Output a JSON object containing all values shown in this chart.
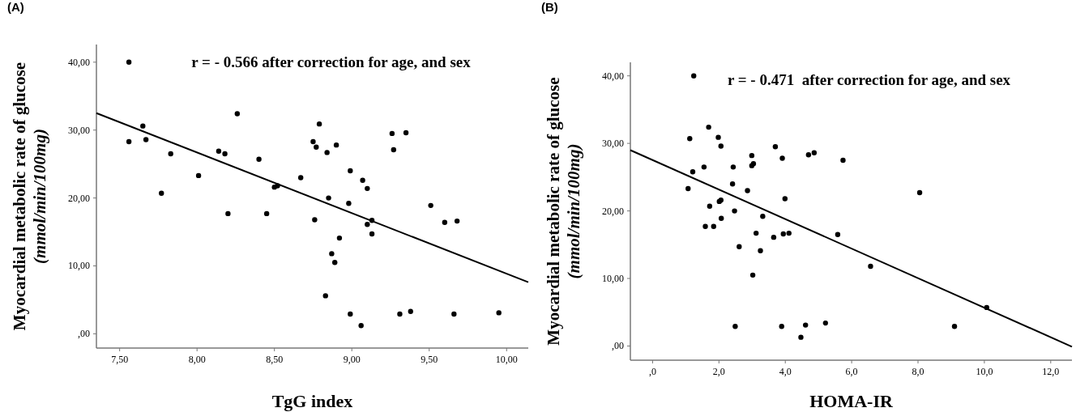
{
  "chart_data": [
    {
      "type": "scatter",
      "title": "(A)",
      "xlabel": "TgG index",
      "ylabel": "Myocardial metabolic rate of glucose\n(mmol/min/100mg)",
      "annotations": [
        "r = - 0.566 after correction for age, and sex"
      ],
      "grid": false,
      "xlim": [
        7.35,
        10.14
      ],
      "ylim": [
        -2.1,
        42.6
      ],
      "xticks": [
        {
          "value": 7.5,
          "label": "7,50"
        },
        {
          "value": 8,
          "label": "8,00"
        },
        {
          "value": 8.5,
          "label": "8,50"
        },
        {
          "value": 9,
          "label": "9,00"
        },
        {
          "value": 9.5,
          "label": "9,50"
        },
        {
          "value": 10,
          "label": "10,00"
        }
      ],
      "yticks": [
        {
          "value": 0,
          "label": ",00"
        },
        {
          "value": 10,
          "label": "10,00"
        },
        {
          "value": 20,
          "label": "20,00"
        },
        {
          "value": 30,
          "label": "30,00"
        },
        {
          "value": 40,
          "label": "40,00"
        }
      ],
      "series": [
        {
          "marker": "circle",
          "color": "#000000",
          "x": [
            7.56,
            7.56,
            7.65,
            7.67,
            7.77,
            7.83,
            8.01,
            8.14,
            8.18,
            8.2,
            8.26,
            8.4,
            8.45,
            8.5,
            8.52,
            8.67,
            8.75,
            8.77,
            8.79,
            8.84,
            8.9,
            8.76,
            8.85,
            8.99,
            8.98,
            9.07,
            9.1,
            9.13,
            9.1,
            9.13,
            8.92,
            8.87,
            8.89,
            8.83,
            8.99,
            9.06,
            9.26,
            9.35,
            9.27,
            9.51,
            9.6,
            9.68,
            9.31,
            9.38,
            9.66,
            9.95
          ],
          "values": [
            40,
            28.3,
            30.6,
            28.6,
            20.7,
            26.5,
            23.3,
            26.9,
            26.5,
            17.7,
            32.4,
            25.7,
            17.7,
            21.6,
            21.8,
            23,
            28.3,
            27.5,
            30.9,
            26.7,
            27.8,
            16.8,
            20,
            24,
            19.2,
            22.6,
            21.4,
            16.7,
            16.1,
            14.7,
            14.1,
            11.8,
            10.5,
            5.6,
            2.9,
            1.2,
            29.5,
            29.6,
            27.1,
            18.9,
            16.4,
            16.6,
            2.9,
            3.3,
            2.9,
            3.1
          ]
        },
        {
          "type": "line",
          "color": "#000000",
          "x": [
            7.35,
            10.14
          ],
          "values": [
            32.5,
            7.6
          ]
        }
      ]
    },
    {
      "type": "scatter",
      "title": "(B)",
      "xlabel": "HOMA-IR",
      "ylabel": "Myocardial metabolic rate of glucose\n(mmol/min/100mg)",
      "annotations": [
        "r = - 0.471  after correction for age, and sex"
      ],
      "grid": false,
      "xlim": [
        -0.67,
        12.64
      ],
      "ylim": [
        -2.1,
        42
      ],
      "xticks": [
        {
          "value": 0,
          "label": ",0"
        },
        {
          "value": 2,
          "label": "2,0"
        },
        {
          "value": 4,
          "label": "4,0"
        },
        {
          "value": 6,
          "label": "6,0"
        },
        {
          "value": 8,
          "label": "8,0"
        },
        {
          "value": 10,
          "label": "10,0"
        },
        {
          "value": 12,
          "label": "12,0"
        }
      ],
      "yticks": [
        {
          "value": 0,
          "label": ",00"
        },
        {
          "value": 10,
          "label": "10,00"
        },
        {
          "value": 20,
          "label": "20,00"
        },
        {
          "value": 30,
          "label": "30,00"
        },
        {
          "value": 40,
          "label": "40,00"
        }
      ],
      "series": [
        {
          "marker": "circle",
          "color": "#000000",
          "x": [
            1.24,
            1.12,
            1.69,
            1.98,
            2.06,
            1.21,
            1.07,
            1.55,
            1.72,
            1.59,
            1.84,
            2.01,
            2.06,
            2.07,
            2.43,
            2.41,
            2.47,
            2.61,
            2.86,
            2.99,
            2.99,
            3.04,
            3.02,
            3.12,
            3.25,
            3.32,
            3.65,
            3.7,
            3.91,
            3.94,
            4.11,
            3.99,
            4.7,
            4.87,
            5.74,
            5.58,
            2.49,
            3.89,
            4.47,
            4.61,
            5.21,
            6.57,
            8.05,
            10.07,
            9.1
          ],
          "values": [
            40,
            30.7,
            32.4,
            30.9,
            29.6,
            25.8,
            23.3,
            26.5,
            20.7,
            17.7,
            17.7,
            21.4,
            21.6,
            18.9,
            26.5,
            24,
            20,
            14.7,
            23,
            28.2,
            26.7,
            27,
            10.5,
            16.7,
            14.1,
            19.2,
            16.1,
            29.5,
            27.8,
            16.6,
            16.7,
            21.8,
            28.3,
            28.6,
            27.5,
            16.5,
            2.9,
            2.9,
            1.3,
            3.1,
            3.4,
            11.8,
            22.7,
            5.7,
            2.9
          ]
        },
        {
          "type": "line",
          "color": "#000000",
          "x": [
            -0.67,
            12.64
          ],
          "values": [
            29,
            -0.1
          ]
        }
      ]
    }
  ]
}
